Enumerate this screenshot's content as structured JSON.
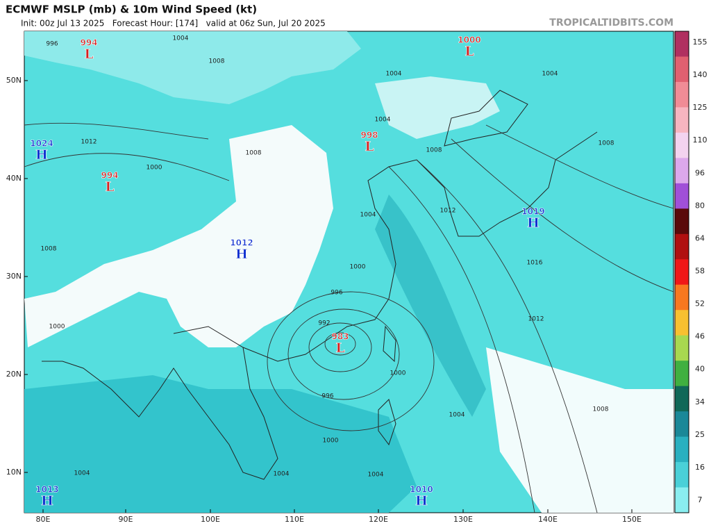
{
  "header": {
    "title": "ECMWF MSLP (mb) & 10m Wind Speed (kt)",
    "subtitle": "Init: 00z Jul 13 2025   Forecast Hour: [174]   valid at 06z Sun, Jul 20 2025",
    "credit": "TROPICALTIDBITS.COM"
  },
  "axes": {
    "lat_labels": [
      "50N",
      "40N",
      "30N",
      "20N",
      "10N"
    ],
    "lon_labels": [
      "80E",
      "90E",
      "100E",
      "110E",
      "120E",
      "130E",
      "140E",
      "150E"
    ]
  },
  "colorbar": {
    "ticks": [
      155,
      140,
      125,
      110,
      96,
      80,
      64,
      58,
      52,
      46,
      40,
      34,
      25,
      16,
      7
    ],
    "colors": [
      "#b03060",
      "#e06070",
      "#f08c96",
      "#f7b5c0",
      "#f3d3ef",
      "#dca8ec",
      "#a050d8",
      "#5a0a0a",
      "#b01010",
      "#f01818",
      "#f87820",
      "#f8c030",
      "#a8d850",
      "#40b040",
      "#106858",
      "#1a8898",
      "#2ab0c0",
      "#4ad0d8",
      "#8aeef0"
    ]
  },
  "pressure_centers": [
    {
      "letter": "L",
      "value": 994
    },
    {
      "letter": "L",
      "value": 1000
    },
    {
      "letter": "L",
      "value": 998
    },
    {
      "letter": "L",
      "value": 994
    },
    {
      "letter": "H",
      "value": 1024
    },
    {
      "letter": "H",
      "value": 1012
    },
    {
      "letter": "H",
      "value": 1019
    },
    {
      "letter": "L",
      "value": 983
    },
    {
      "letter": "H",
      "value": 1013
    },
    {
      "letter": "H",
      "value": 1010
    }
  ],
  "isobar_labels": [
    996,
    1004,
    1008,
    1004,
    1004,
    1004,
    1008,
    1008,
    1008,
    1012,
    1004,
    1016,
    1012,
    1000,
    996,
    992,
    1000,
    996,
    1004,
    1008,
    1000,
    1004,
    1004,
    1004,
    1000,
    1008,
    1012,
    1000
  ]
}
